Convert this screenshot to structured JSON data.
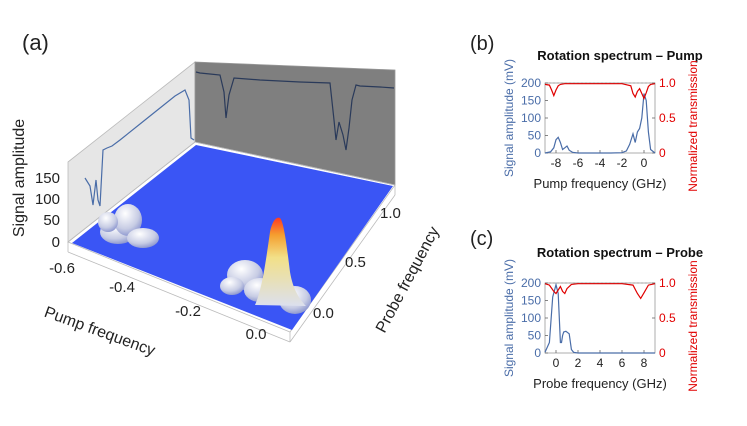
{
  "panels": {
    "a_label": "(a)",
    "b_label": "(b)",
    "c_label": "(c)"
  },
  "chart_data": [
    {
      "id": "a",
      "type": "surface3d",
      "title": "",
      "xlabel": "Pump frequency",
      "ylabel": "Probe frequency",
      "zlabel": "Signal amplitude",
      "x_ticks": [
        "-0.6",
        "-0.4",
        "-0.2",
        "0.0"
      ],
      "y_ticks": [
        "0.0",
        "0.5",
        "1.0"
      ],
      "z_ticks": [
        "0",
        "50",
        "100",
        "150"
      ],
      "xlim": [
        -0.65,
        0.05
      ],
      "ylim": [
        0,
        1.2
      ],
      "zlim": [
        0,
        160
      ],
      "peaks": [
        {
          "x": -0.5,
          "y": 0.1,
          "z": 20
        },
        {
          "x": -0.47,
          "y": 0.35,
          "z": 28
        },
        {
          "x": -0.5,
          "y": 0.55,
          "z": 22
        },
        {
          "x": -0.05,
          "y": 0.25,
          "z": 150
        },
        {
          "x": -0.12,
          "y": 0.15,
          "z": 38
        },
        {
          "x": -0.16,
          "y": 0.4,
          "z": 30
        },
        {
          "x": -0.02,
          "y": 0.0,
          "z": 22
        }
      ],
      "colors": {
        "floor": "#3a55f5",
        "peak": "#ff4020",
        "projection": "#4a6da8"
      }
    },
    {
      "id": "b",
      "type": "line",
      "title": "Rotation spectrum – Pump",
      "xlabel": "Pump frequency (GHz)",
      "ylabel": "Signal amplitude (mV)",
      "y2label": "Normalized transmission",
      "xlim": [
        -9,
        1
      ],
      "ylim": [
        0,
        200
      ],
      "y2lim": [
        0,
        1.0
      ],
      "x_ticks": [
        "-8",
        "-6",
        "-4",
        "-2",
        "0"
      ],
      "y_ticks": [
        "0",
        "50",
        "100",
        "150",
        "200"
      ],
      "y2_ticks": [
        "0",
        "0.5",
        "1.0"
      ],
      "series": [
        {
          "name": "Signal amplitude",
          "axis": "left",
          "color": "#4a6da8",
          "x": [
            -9,
            -8.5,
            -8.2,
            -8.0,
            -7.8,
            -7.6,
            -7.4,
            -7.2,
            -7.0,
            -6.8,
            -6.5,
            -6.0,
            -5,
            -4,
            -3,
            -2,
            -1.6,
            -1.3,
            -1.0,
            -0.8,
            -0.6,
            -0.4,
            -0.2,
            0.0,
            0.2,
            0.4,
            0.6,
            1.0
          ],
          "values": [
            0,
            3,
            15,
            38,
            45,
            30,
            10,
            15,
            20,
            8,
            2,
            0,
            0,
            0,
            0,
            1,
            6,
            25,
            55,
            30,
            60,
            70,
            100,
            170,
            150,
            60,
            10,
            0
          ]
        },
        {
          "name": "Normalized transmission",
          "axis": "right",
          "color": "#e00000",
          "x": [
            -9,
            -8.6,
            -8.4,
            -8.2,
            -8.0,
            -7.8,
            -7.6,
            -7.2,
            -6.0,
            -4,
            -2,
            -1.2,
            -1.0,
            -0.8,
            -0.6,
            -0.4,
            -0.2,
            0.0,
            0.2,
            0.4,
            0.6,
            1.0
          ],
          "values": [
            0.98,
            0.97,
            0.9,
            0.82,
            0.9,
            0.96,
            0.98,
            0.99,
            0.99,
            0.99,
            0.99,
            0.96,
            0.85,
            0.8,
            0.88,
            0.92,
            0.85,
            0.78,
            0.86,
            0.95,
            0.98,
            0.99
          ]
        }
      ]
    },
    {
      "id": "c",
      "type": "line",
      "title": "Rotation spectrum – Probe",
      "xlabel": "Probe frequency (GHz)",
      "ylabel": "Signal amplitude (mV)",
      "y2label": "Normalized transmission",
      "xlim": [
        -1,
        9
      ],
      "ylim": [
        0,
        200
      ],
      "y2lim": [
        0,
        1.0
      ],
      "x_ticks": [
        "0",
        "2",
        "4",
        "6",
        "8"
      ],
      "y_ticks": [
        "0",
        "50",
        "100",
        "150",
        "200"
      ],
      "y2_ticks": [
        "0",
        "0.5",
        "1.0"
      ],
      "series": [
        {
          "name": "Signal amplitude",
          "axis": "left",
          "color": "#4a6da8",
          "x": [
            -1,
            -0.6,
            -0.3,
            0.0,
            0.2,
            0.4,
            0.5,
            0.6,
            0.7,
            0.9,
            1.2,
            1.4,
            1.6,
            2,
            3,
            5,
            7,
            9
          ],
          "values": [
            2,
            30,
            160,
            195,
            170,
            30,
            30,
            50,
            60,
            62,
            55,
            10,
            2,
            0,
            0,
            0,
            0,
            0
          ]
        },
        {
          "name": "Normalized transmission",
          "axis": "right",
          "color": "#e00000",
          "x": [
            -1,
            -0.6,
            -0.2,
            0.0,
            0.2,
            0.4,
            0.6,
            0.8,
            1.0,
            1.4,
            2,
            4,
            6,
            7.0,
            7.4,
            7.7,
            8.0,
            8.4,
            9
          ],
          "values": [
            0.99,
            0.97,
            0.88,
            0.85,
            0.9,
            0.95,
            0.88,
            0.85,
            0.92,
            0.98,
            0.99,
            0.99,
            0.99,
            0.97,
            0.85,
            0.78,
            0.86,
            0.97,
            0.99
          ]
        }
      ]
    }
  ]
}
